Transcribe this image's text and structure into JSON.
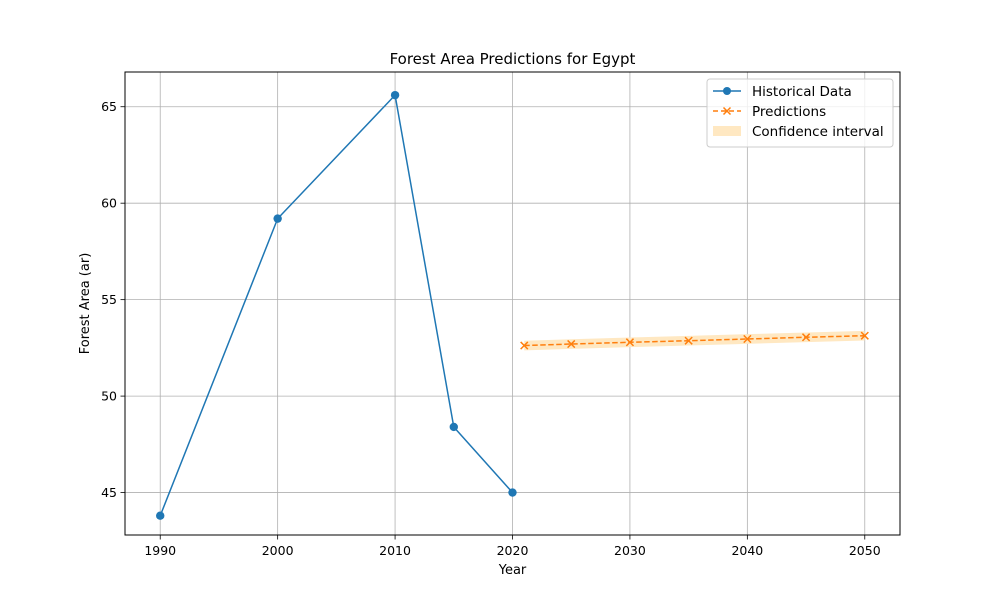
{
  "chart_data": {
    "type": "line",
    "title": "Forest Area Predictions for Egypt",
    "xlabel": "Year",
    "ylabel": "Forest Area (ar)",
    "xlim": [
      1987,
      2053
    ],
    "ylim": [
      42.8,
      66.8
    ],
    "xticks": [
      1990,
      2000,
      2010,
      2020,
      2030,
      2040,
      2050
    ],
    "yticks": [
      45,
      50,
      55,
      60,
      65
    ],
    "grid": true,
    "legend_position": "top-right",
    "legend": [
      "Historical Data",
      "Predictions",
      "Confidence interval"
    ],
    "series": [
      {
        "name": "Historical Data",
        "color": "#1f77b4",
        "marker": "circle",
        "linestyle": "solid",
        "x": [
          1990,
          2000,
          2010,
          2015,
          2020
        ],
        "y": [
          43.8,
          59.2,
          65.6,
          48.4,
          45.0
        ]
      },
      {
        "name": "Predictions",
        "color": "#ff7f0e",
        "marker": "x",
        "linestyle": "dashed",
        "x": [
          2021,
          2025,
          2030,
          2035,
          2040,
          2045,
          2050
        ],
        "y": [
          52.62,
          52.7,
          52.79,
          52.87,
          52.96,
          53.05,
          53.13
        ]
      }
    ],
    "confidence_interval": {
      "name": "Confidence interval",
      "color": "#ffe8c2",
      "x": [
        2021,
        2025,
        2030,
        2035,
        2040,
        2045,
        2050
      ],
      "lower": [
        52.37,
        52.45,
        52.54,
        52.62,
        52.71,
        52.8,
        52.88
      ],
      "upper": [
        52.87,
        52.95,
        53.04,
        53.12,
        53.21,
        53.3,
        53.38
      ]
    }
  }
}
